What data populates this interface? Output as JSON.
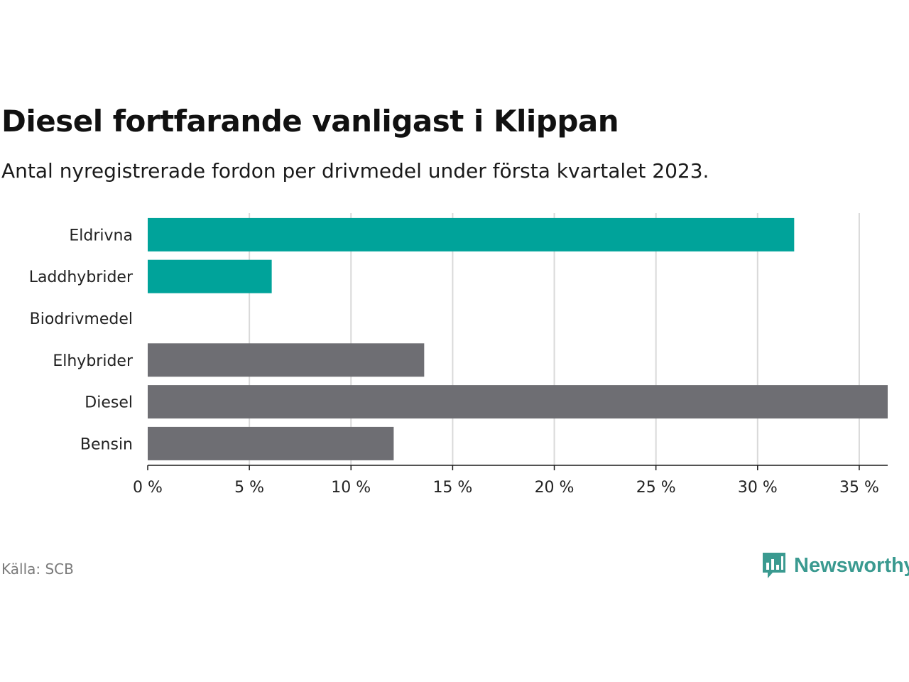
{
  "title": "Diesel fortfarande vanligast i Klippan",
  "subtitle": "Antal nyregistrerade fordon per drivmedel under första kvartalet 2023.",
  "source": "Källa: SCB",
  "logo": {
    "text": "Newsworthy",
    "icon": "newsworthy-chart-bubble-icon"
  },
  "colors": {
    "highlight": "#00a39a",
    "neutral": "#6e6e73",
    "grid": "#d9d9d9",
    "axis": "#1a1a1a"
  },
  "chart_data": {
    "type": "bar",
    "orientation": "horizontal",
    "categories": [
      "Eldrivna",
      "Laddhybrider",
      "Biodrivmedel",
      "Elhybrider",
      "Diesel",
      "Bensin"
    ],
    "values": [
      31.8,
      6.1,
      0,
      13.6,
      36.4,
      12.1
    ],
    "highlight": [
      true,
      true,
      false,
      false,
      false,
      false
    ],
    "xlim": [
      0,
      36.4
    ],
    "xticks": [
      0,
      5,
      10,
      15,
      20,
      25,
      30,
      35
    ],
    "xtick_labels": [
      "0 %",
      "5 %",
      "10 %",
      "15 %",
      "20 %",
      "25 %",
      "30 %",
      "35 %"
    ],
    "grid": true
  }
}
